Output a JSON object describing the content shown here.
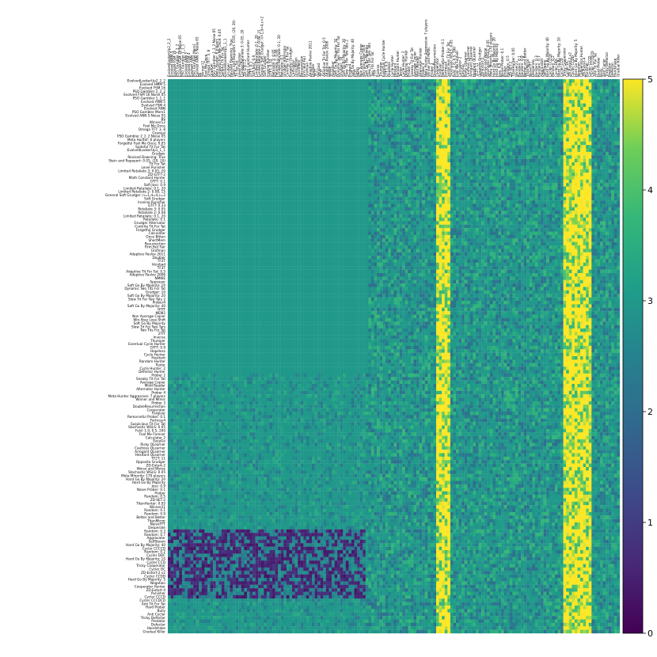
{
  "chart_data": {
    "type": "heatmap",
    "title": "",
    "xlabel": "",
    "ylabel": "",
    "colormap": "viridis",
    "value_range": [
      0,
      5
    ],
    "colorbar_ticks": [
      0,
      1,
      2,
      3,
      4,
      5
    ],
    "colorbar_position": "right",
    "row_labels": [
      "EvolvedLookerUp2_2_2",
      "Evolved HMM 5",
      "Evolved FSM 16",
      "PSO Gambler 2_2_2",
      "Evolved FSM 16 Noise 05",
      "PSO Gambler 1_1_1",
      "Evolved ANN 5",
      "Evolved FSM 4",
      "Evolved ANN",
      "PSO Gambler Mem1",
      "Evolved ANN 5 Noise 05",
      "BS",
      "Winner12",
      "Fool Me Once",
      "Omega TFT: 3, 8",
      "Gradual",
      "PSO Gambler 2_2_2 Noise 05",
      "Meta Hunter: 6 players",
      "Forgetful Fool Me Once: 0.05",
      "Spiteful Tit For Tat",
      "EvolvedLookerUp1_1_1",
      "Grudger",
      "Revised Downing: True",
      "Stein and Rapoport: 0.05, (20, 20)",
      "Tit For Tat",
      "Level Punisher",
      "Limited Retaliate 3: 0.05, 20",
      "ZD-GTFT-2",
      "Math Constant Hunter",
      "GTFT: 0.1",
      "Soft Joss: 0.9",
      "Limited Retaliate: 0.1, 20",
      "Limited Retaliate 2: 0.08, 15",
      "General Soft Grudger: n=1,d=4,c=2",
      "Soft Grudger",
      "Inverse Punisher",
      "GTFT: 0.33",
      "Retaliate 3: 0.05",
      "Retaliate 2: 0.08",
      "Limited Retaliate: 0.1, 20",
      "Retaliate: 0.1",
      "Grudger Alternator",
      "Contrite Tit For Tat",
      "Forgetful Grudger",
      "Calculator",
      "Once Bitten",
      "ShortMem",
      "Resurrection",
      "Firm But Fair",
      "Grofman",
      "Adaptive Pavlov 2011",
      "Doubler",
      "TF2T",
      "Verybad",
      "TF3T",
      "Adaptive Tit For Tat: 0.5",
      "Adaptive Pavlov 2006",
      "NMWE",
      "Appeaser",
      "Soft Go By Majority: 10",
      "Dynamic Two Tits For Tat",
      "Grudger: 10",
      "Soft Go By Majority: 20",
      "Slow Tit For Two Tats 2",
      "Prober4",
      "Soft Go By Majority: 40",
      "HTfT",
      "MEM2",
      "Non Average Copier",
      "Win-Stay Lose-Shift",
      "Soft Go By Majority",
      "Slow Tit For Two Tats",
      "Two Tits For Tat",
      "2TfT",
      "Inverse",
      "Thumper",
      "Eventual Cycle Hunter",
      "GTFT: 0.9",
      "Hopeless",
      "Cycle Hunter",
      "Hesitant",
      "Random Hunter",
      "Tester",
      "Cycle Hunter: 2",
      "Defector Hunter",
      "Prober 2",
      "Sneaky Tit For Tat",
      "Average Copier",
      "Mind Reader",
      "Alternator Hunter",
      "Prober 4",
      "Meta Hunter Aggressive: 7 players",
      "Winner and Mimic",
      "Prober 3",
      "DoubleResurrection",
      "Cooperator",
      "Forgiver",
      "Remorseful Prober: 0.1",
      "Fortress4",
      "Suspicious Tit For Tat",
      "Stochastic WSLS: 0.05",
      "Feld: 1.0, 0.5, 200",
      "Fool Me Forever",
      "Calculator 2",
      "EasyGo",
      "Risky QLearner",
      "Cautious QLearner",
      "Arrogant QLearner",
      "Hesitant QLearner",
      "TF2T: 11",
      "Opposite Grudger",
      "ZD-Extort-2",
      "Worse and Worse",
      "Stochastic WSLS: 0.05",
      "Meta Minority: 170 players",
      "Hard Go By Majority: 20",
      "Hard Go By Majority",
      "Joss: 0.9",
      "Naive Prober: 0.1",
      "Prober",
      "Random: 0.5",
      "ZD-SET-2",
      "TitanHunter: 0.05",
      "Winner21",
      "Random: 0.1",
      "Random: 0.9",
      "Better and Better",
      "TitanMirror",
      "NaiveTFT",
      "Desperate",
      "Random: 0.3",
      "Random: 0.7",
      "Aggravater",
      "SelfSteem",
      "Hard Go By Majority: 40",
      "Cycler CCCCD",
      "Random: 0.2",
      "Cycler DDC",
      "Hard Go By Majority: 10",
      "Cycler CCD",
      "Tricky Cooperator",
      "Cycler DC",
      "ZD-Extort-2 v2",
      "Cycler CCDD",
      "Hard Go By Majority: 5",
      "Negation",
      "Cooperator Hunter",
      "ZD-Extort-4",
      "Punisher",
      "Cycler CCCD",
      "Cycler CCCDCD",
      "Anti Tit For Tat",
      "Hard Prober",
      "Bully",
      "Anti Cycler",
      "Tricky Defector",
      "Predator",
      "Defector",
      "Handshake",
      "Gradual Killer"
    ],
    "col_labels": [
      "EvolvedLookerUp2_2_2",
      "Evolved HMM 5",
      "Evolved FSM 16",
      "PSO Gambler 2_2_2",
      "Evolved FSM 16 Noise 05",
      "PSO Gambler 1_1_1",
      "Evolved ANN 5",
      "Evolved FSM 4",
      "Evolved ANN",
      "PSO Gambler Mem1",
      "Evolved ANN 5 Noise 05",
      "BS",
      "Winner12",
      "Fool Me Once",
      "Omega TFT: 3, 8",
      "Gradual",
      "PSO Gambler 2_2_2 Noise 05",
      "Meta Hunter: 6 players",
      "Forgetful Fool Me Once: 0.05",
      "Spiteful Tit For Tat",
      "EvolvedLookerUp1_1_1",
      "Grudger",
      "Revised Downing: True",
      "Stein and Rapoport: 0.05, (20, 20)",
      "Tit For Tat",
      "Level Punisher",
      "Limited Retaliate 3: 0.05, 20",
      "ZD-GTFT-2",
      "Math Constant Hunter",
      "GTFT: 0.1",
      "Soft Joss: 0.9",
      "Limited Retaliate: 0.1, 20",
      "Limited Retaliate 2: 0.08, 15",
      "General Soft Grudger: n=1,d=4,c=2",
      "Soft Grudger",
      "Inverse Punisher",
      "GTFT: 0.33",
      "Retaliate 3: 0.05",
      "Retaliate 2: 0.08",
      "Limited Retaliate: 0.1, 20",
      "Retaliate: 0.1",
      "Grudger Alternator",
      "Contrite Tit For Tat",
      "Forgetful Grudger",
      "Calculator",
      "Once Bitten",
      "ShortMem",
      "Resurrection",
      "Firm But Fair",
      "Grofman",
      "Adaptive Pavlov 2011",
      "Doubler",
      "TF2T",
      "Verybad",
      "TF3T",
      "Adaptive Tit For Tat: 0.5",
      "Adaptive Pavlov 2006",
      "NMWE",
      "Appeaser",
      "Soft Go By Majority: 10",
      "Dynamic Two Tits For Tat",
      "Grudger: 10",
      "Soft Go By Majority: 20",
      "Slow Tit For Two Tats 2",
      "Prober4",
      "Soft Go By Majority: 40",
      "HTfT",
      "MEM2",
      "Non Average Copier",
      "Win-Stay Lose-Shift",
      "Soft Go By Majority",
      "Slow Tit For Two Tats",
      "Two Tits For Tat",
      "2TfT",
      "Inverse",
      "Thumper",
      "Eventual Cycle Hunter",
      "GTFT: 0.9",
      "Hopeless",
      "Cycle Hunter",
      "Hesitant",
      "Random Hunter",
      "Tester",
      "Cycle Hunter: 2",
      "Defector Hunter",
      "Prober 2",
      "Sneaky Tit For Tat",
      "Average Copier",
      "Mind Reader",
      "Alternator Hunter",
      "Prober 4",
      "Meta Hunter Aggressive: 7 players",
      "Winner and Mimic",
      "Prober 3",
      "DoubleResurrection",
      "Cooperator",
      "Forgiver",
      "Remorseful Prober: 0.1",
      "Fortress4",
      "Suspicious Tit For Tat",
      "Stochastic WSLS: 0.05",
      "Feld: 1.0, 0.5, 200",
      "Fool Me Forever",
      "Calculator 2",
      "EasyGo",
      "Risky QLearner",
      "Cautious QLearner",
      "Arrogant QLearner",
      "Hesitant QLearner",
      "TF2T: 11",
      "Opposite Grudger",
      "ZD-Extort-2",
      "Worse and Worse",
      "Stochastic WSLS: 0.05",
      "Meta Minority: 170 players",
      "Hard Go By Majority: 20",
      "Hard Go By Majority",
      "Joss: 0.9",
      "Naive Prober: 0.1",
      "Prober",
      "Random: 0.5",
      "ZD-SET-2",
      "TitanHunter: 0.05",
      "Winner21",
      "Random: 0.1",
      "Random: 0.9",
      "Better and Better",
      "TitanMirror",
      "NaiveTFT",
      "Desperate",
      "Random: 0.3",
      "Random: 0.7",
      "Aggravater",
      "SelfSteem",
      "Hard Go By Majority: 40",
      "Cycler CCCCD",
      "Random: 0.2",
      "Cycler DDC",
      "Hard Go By Majority: 10",
      "Cycler CCD",
      "Tricky Cooperator",
      "Cycler DC",
      "ZD-Extort-2 v2",
      "Cycler CCDD",
      "Hard Go By Majority: 5",
      "Negation",
      "Cooperator Hunter",
      "ZD-Extort-4",
      "Punisher",
      "Cycler CCCD",
      "Cycler CCCDCD",
      "Anti Tit For Tat",
      "Hard Prober",
      "Bully",
      "Anti Cycler",
      "Tricky Defector",
      "Predator",
      "Defector",
      "Handshake",
      "Gradual Killer"
    ],
    "value_structure": {
      "cooperative_block_value": 3,
      "cooperative_block_rows": [
        0,
        84
      ],
      "cooperative_block_cols": [
        0,
        70
      ],
      "bright_columns": [
        95,
        96,
        97,
        98,
        99,
        140,
        141,
        142,
        143,
        144,
        145,
        146,
        147,
        148,
        149
      ],
      "dark_rows": [
        130,
        131,
        132,
        133,
        134,
        135,
        136,
        137,
        138,
        139,
        140,
        141,
        142,
        143,
        144,
        145,
        146,
        147,
        148,
        149
      ]
    }
  }
}
